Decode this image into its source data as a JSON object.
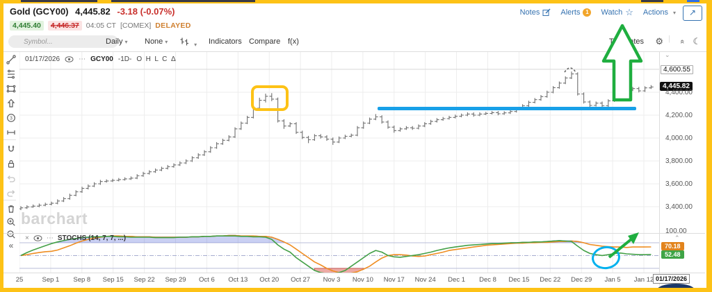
{
  "header": {
    "symbol_title": "Gold (GCY00)",
    "last_price": "4,445.82",
    "change": "-3.18 (-0.07%)",
    "bid": "4,445.40",
    "ask": "4,446.37",
    "session_time": "04:05 CT",
    "exchange": "[COMEX]",
    "delayed_label": "DELAYED",
    "links": {
      "notes": "Notes",
      "alerts": "Alerts",
      "alerts_badge": "1",
      "watch": "Watch",
      "actions": "Actions"
    }
  },
  "toolbar": {
    "symbol_placeholder": "Symbol...",
    "period": "Daily",
    "overlay": "None",
    "indicators": "Indicators",
    "compare": "Compare",
    "fx": "f(x)",
    "templates": "Templates"
  },
  "sidebar_tools": [
    "trendline",
    "fibonacci",
    "shapes",
    "arrow",
    "patterns",
    "measure",
    "magnet",
    "lock",
    "undo",
    "redo",
    "delete",
    "zoom-in",
    "zoom-out",
    "collapse"
  ],
  "legend": {
    "date": "01/17/2026",
    "symbol": "GCY00",
    "period": "-1D-",
    "fields": "O  H  L  C  Δ"
  },
  "watermark": "barchart",
  "price_axis": {
    "high_label": "4,600.55",
    "last_label": "4,445.82",
    "ticks": [
      {
        "label": "4,400.00",
        "price": 4400
      },
      {
        "label": "4,200.00",
        "price": 4200
      },
      {
        "label": "4,000.00",
        "price": 4000
      },
      {
        "label": "3,800.00",
        "price": 3800
      },
      {
        "label": "3,600.00",
        "price": 3600
      },
      {
        "label": "3,400.00",
        "price": 3400
      }
    ]
  },
  "stoch_axis": {
    "top": "100.00",
    "d_value": "70.18",
    "k_value": "52.48"
  },
  "stoch_label": "STOCHS (14, 7, 7, ...)",
  "date_axis": {
    "labels": [
      "25",
      "Sep 1",
      "Sep 8",
      "Sep 15",
      "Sep 22",
      "Sep 29",
      "Oct 6",
      "Oct 13",
      "Oct 20",
      "Oct 27",
      "Nov 3",
      "Nov 10",
      "Nov 17",
      "Nov 24",
      "Dec 1",
      "Dec 8",
      "Dec 15",
      "Dec 22",
      "Dec 29",
      "Jan 5",
      "Jan 12"
    ],
    "end_date": "01/17/2026"
  },
  "chart_data": {
    "type": "ohlc-bar",
    "title": "Gold (GCY00) daily OHLC with STOCHS(14,7,7)",
    "price_gridlines": [
      4600,
      4400,
      4200,
      4000,
      3800,
      3600,
      3400
    ],
    "contract_high": 4600.55,
    "last": 4445.82,
    "bars": [
      [
        3382,
        3404,
        3370,
        3390
      ],
      [
        3390,
        3412,
        3380,
        3398
      ],
      [
        3398,
        3419,
        3391,
        3405
      ],
      [
        3405,
        3427,
        3396,
        3413
      ],
      [
        3413,
        3435,
        3404,
        3421
      ],
      [
        3421,
        3444,
        3412,
        3430
      ],
      [
        3430,
        3464,
        3421,
        3450
      ],
      [
        3450,
        3484,
        3441,
        3470
      ],
      [
        3470,
        3514,
        3461,
        3500
      ],
      [
        3500,
        3544,
        3491,
        3530
      ],
      [
        3530,
        3574,
        3521,
        3560
      ],
      [
        3560,
        3594,
        3551,
        3580
      ],
      [
        3580,
        3614,
        3571,
        3600
      ],
      [
        3600,
        3634,
        3591,
        3620
      ],
      [
        3620,
        3639,
        3611,
        3625
      ],
      [
        3625,
        3644,
        3616,
        3630
      ],
      [
        3630,
        3651,
        3621,
        3637
      ],
      [
        3637,
        3657,
        3628,
        3643
      ],
      [
        3643,
        3664,
        3634,
        3650
      ],
      [
        3650,
        3684,
        3641,
        3670
      ],
      [
        3670,
        3704,
        3661,
        3690
      ],
      [
        3690,
        3719,
        3681,
        3705
      ],
      [
        3705,
        3734,
        3696,
        3720
      ],
      [
        3720,
        3749,
        3711,
        3735
      ],
      [
        3735,
        3764,
        3726,
        3750
      ],
      [
        3750,
        3779,
        3741,
        3765
      ],
      [
        3765,
        3796,
        3756,
        3782
      ],
      [
        3782,
        3814,
        3773,
        3800
      ],
      [
        3800,
        3841,
        3791,
        3827
      ],
      [
        3827,
        3867,
        3818,
        3853
      ],
      [
        3853,
        3894,
        3844,
        3880
      ],
      [
        3880,
        3929,
        3871,
        3915
      ],
      [
        3915,
        3964,
        3906,
        3950
      ],
      [
        3950,
        3994,
        3941,
        3980
      ],
      [
        3980,
        4024,
        3971,
        4010
      ],
      [
        4010,
        4094,
        4001,
        4080
      ],
      [
        4080,
        4144,
        4071,
        4130
      ],
      [
        4130,
        4194,
        4121,
        4180
      ],
      [
        4180,
        4274,
        4171,
        4260
      ],
      [
        4260,
        4352,
        4251,
        4330
      ],
      [
        4330,
        4388,
        4311,
        4365
      ],
      [
        4365,
        4392,
        4322,
        4340
      ],
      [
        4340,
        4354,
        4136,
        4150
      ],
      [
        4150,
        4164,
        4080,
        4105
      ],
      [
        4105,
        4139,
        4096,
        4125
      ],
      [
        4125,
        4139,
        4036,
        4050
      ],
      [
        4050,
        4064,
        3991,
        4005
      ],
      [
        4005,
        4019,
        3955,
        3985
      ],
      [
        3985,
        4034,
        3976,
        4020
      ],
      [
        4020,
        4034,
        3996,
        4010
      ],
      [
        4010,
        4024,
        3976,
        3990
      ],
      [
        3990,
        4004,
        3940,
        3965
      ],
      [
        3965,
        4014,
        3956,
        4000
      ],
      [
        4000,
        4029,
        3991,
        4015
      ],
      [
        4015,
        4039,
        4006,
        4025
      ],
      [
        4025,
        4104,
        4016,
        4090
      ],
      [
        4090,
        4144,
        4081,
        4130
      ],
      [
        4130,
        4179,
        4121,
        4165
      ],
      [
        4165,
        4209,
        4156,
        4185
      ],
      [
        4185,
        4199,
        4126,
        4140
      ],
      [
        4140,
        4154,
        4081,
        4095
      ],
      [
        4095,
        4109,
        4046,
        4065
      ],
      [
        4065,
        4094,
        4056,
        4080
      ],
      [
        4080,
        4104,
        4071,
        4090
      ],
      [
        4090,
        4104,
        4071,
        4085
      ],
      [
        4085,
        4119,
        4076,
        4105
      ],
      [
        4105,
        4139,
        4096,
        4125
      ],
      [
        4125,
        4159,
        4116,
        4145
      ],
      [
        4145,
        4174,
        4136,
        4160
      ],
      [
        4160,
        4184,
        4151,
        4170
      ],
      [
        4170,
        4194,
        4161,
        4180
      ],
      [
        4180,
        4204,
        4171,
        4190
      ],
      [
        4190,
        4214,
        4181,
        4200
      ],
      [
        4200,
        4224,
        4191,
        4210
      ],
      [
        4210,
        4224,
        4186,
        4200
      ],
      [
        4200,
        4224,
        4191,
        4210
      ],
      [
        4210,
        4229,
        4201,
        4215
      ],
      [
        4215,
        4236,
        4206,
        4222
      ],
      [
        4222,
        4236,
        4198,
        4212
      ],
      [
        4212,
        4234,
        4203,
        4220
      ],
      [
        4220,
        4246,
        4211,
        4232
      ],
      [
        4232,
        4266,
        4223,
        4252
      ],
      [
        4252,
        4296,
        4243,
        4282
      ],
      [
        4282,
        4326,
        4273,
        4312
      ],
      [
        4312,
        4349,
        4303,
        4335
      ],
      [
        4335,
        4376,
        4326,
        4362
      ],
      [
        4362,
        4414,
        4353,
        4400
      ],
      [
        4400,
        4454,
        4391,
        4440
      ],
      [
        4440,
        4494,
        4431,
        4480
      ],
      [
        4480,
        4539,
        4471,
        4525
      ],
      [
        4525,
        4581,
        4516,
        4560
      ],
      [
        4560,
        4574,
        4371,
        4385
      ],
      [
        4385,
        4399,
        4301,
        4315
      ],
      [
        4315,
        4329,
        4271,
        4285
      ],
      [
        4285,
        4319,
        4276,
        4305
      ],
      [
        4305,
        4319,
        4268,
        4282
      ],
      [
        4282,
        4339,
        4273,
        4325
      ],
      [
        4325,
        4376,
        4316,
        4362
      ],
      [
        4362,
        4414,
        4353,
        4400
      ],
      [
        4400,
        4434,
        4391,
        4420
      ],
      [
        4420,
        4446,
        4411,
        4432
      ],
      [
        4432,
        4446,
        4398,
        4412
      ],
      [
        4412,
        4452,
        4403,
        4438
      ],
      [
        4438,
        4462,
        4429,
        4446
      ]
    ],
    "stochastics": {
      "overbought": 80,
      "mid": 50,
      "oversold": 20,
      "k_last": 52.48,
      "d_last": 70.18,
      "k": [
        50,
        57,
        63,
        68,
        73,
        78,
        82,
        85,
        88,
        90,
        92,
        93,
        94,
        94,
        95,
        95,
        94,
        94,
        93,
        93,
        93,
        93,
        92,
        92,
        92,
        92,
        93,
        93,
        94,
        94,
        95,
        95,
        96,
        96,
        96,
        96,
        95,
        95,
        94,
        94,
        93,
        88,
        75,
        65,
        58,
        45,
        35,
        25,
        15,
        10,
        8,
        8,
        10,
        15,
        25,
        35,
        45,
        55,
        62,
        58,
        50,
        47,
        46,
        48,
        50,
        52,
        55,
        58,
        62,
        65,
        68,
        70,
        72,
        74,
        75,
        76,
        77,
        78,
        78,
        79,
        80,
        80,
        81,
        81,
        82,
        82,
        83,
        84,
        85,
        84,
        83,
        72,
        62,
        55,
        52,
        50,
        52,
        55,
        56,
        54,
        53,
        52,
        52,
        52.48
      ],
      "d": [
        50,
        52,
        55,
        57,
        59,
        60,
        63,
        68,
        73,
        79,
        84,
        88,
        91,
        93,
        95,
        96,
        96,
        95,
        95,
        94,
        94,
        94,
        93,
        93,
        93,
        93,
        93,
        93,
        94,
        94,
        95,
        95,
        96,
        96,
        97,
        97,
        96,
        96,
        96,
        95,
        95,
        93,
        88,
        82,
        75,
        65,
        55,
        45,
        35,
        28,
        20,
        14,
        10,
        8,
        9,
        12,
        18,
        25,
        35,
        44,
        50,
        52,
        52,
        51,
        49,
        48,
        49,
        52,
        55,
        58,
        62,
        64,
        66,
        68,
        70,
        72,
        74,
        75,
        76,
        77,
        78,
        79,
        79,
        80,
        80,
        81,
        81,
        82,
        83,
        83,
        84,
        83,
        80,
        76,
        74,
        72,
        71,
        70,
        70,
        69,
        70,
        70,
        70,
        70.18
      ]
    },
    "annotations": [
      {
        "type": "rectangle",
        "color": "#fdc216",
        "note": "highlights mid-October swing highs near 4,390"
      },
      {
        "type": "horizontal-line",
        "color": "#18a0e8",
        "price": 4255,
        "note": "resistance line mid-November through early January"
      },
      {
        "type": "block-arrow-up",
        "color": "#1fae3f",
        "note": "points up from recent bars toward Alerts"
      },
      {
        "type": "dashed-arc",
        "color": "#666666",
        "note": "marks the December 30 contract-high bar"
      },
      {
        "type": "circle",
        "color": "#00b1ee",
        "note": "circles %K dip near 50 in early January"
      },
      {
        "type": "arrow-up-right",
        "color": "#1fae3f",
        "note": "projects stochastic turning back up"
      }
    ]
  }
}
